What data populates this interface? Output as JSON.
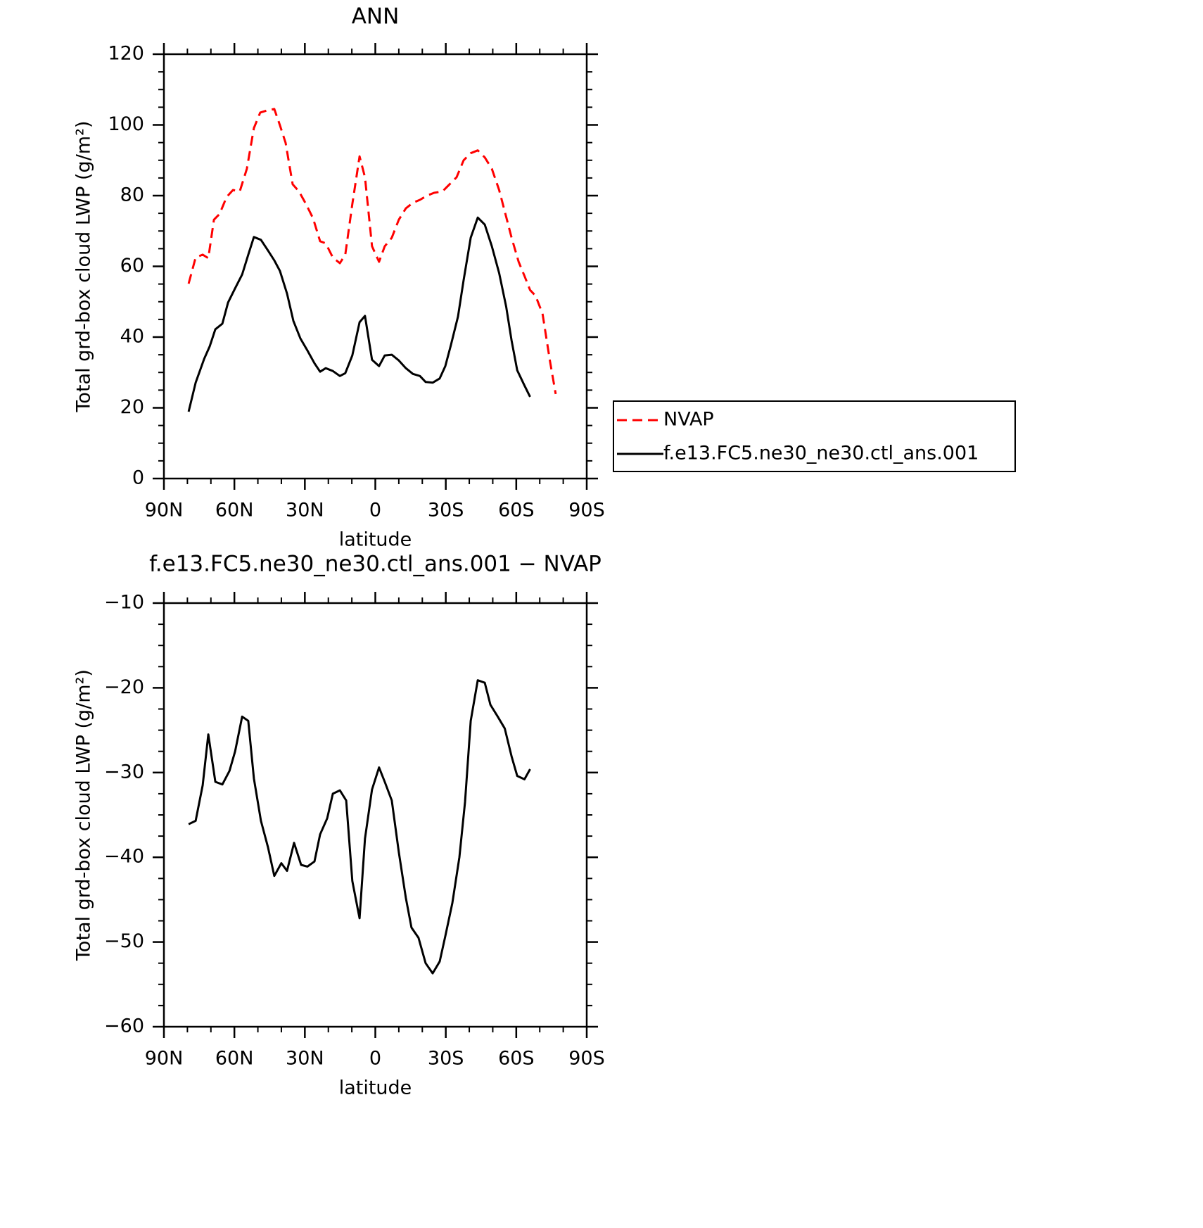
{
  "chart_data": [
    {
      "type": "line",
      "title": "ANN",
      "xlabel": "latitude",
      "ylabel": "Total grd-box cloud LWP (g/m²)",
      "xlim": [
        90,
        -90
      ],
      "xticks": [
        {
          "value": 90,
          "label": "90N"
        },
        {
          "value": 60,
          "label": "60N"
        },
        {
          "value": 30,
          "label": "30N"
        },
        0,
        {
          "value": -30,
          "label": "30S"
        },
        {
          "value": -60,
          "label": "60S"
        },
        {
          "value": -90,
          "label": "90S"
        }
      ],
      "ylim": [
        0,
        120
      ],
      "yticks": [
        0,
        20,
        40,
        60,
        80,
        100,
        120
      ],
      "legend": "right",
      "series": [
        {
          "name": "NVAP",
          "color": "#ff0000",
          "line_style": "dashed",
          "x": [
            79.5,
            76.5,
            73.5,
            71.1,
            68.7,
            66.3,
            63.3,
            60.6,
            57.7,
            54.7,
            51.7,
            49.0,
            46.0,
            43.0,
            40.6,
            38.2,
            35.2,
            32.5,
            29.5,
            26.5,
            23.5,
            21.1,
            18.1,
            15.1,
            12.8,
            9.8,
            6.7,
            4.4,
            1.4,
            -1.6,
            -4.0,
            -7.0,
            -10.0,
            -13.0,
            -16.0,
            -19.0,
            -22.0,
            -25.0,
            -28.6,
            -31.6,
            -34.6,
            -37.6,
            -40.6,
            -43.6,
            -46.6,
            -49.6,
            -52.7,
            -55.7,
            -58.0,
            -61.0,
            -63.5,
            -65.9,
            -68.2,
            -71.2,
            -74.3,
            -76.8
          ],
          "values": [
            55.1,
            62.5,
            63.3,
            62.3,
            73.2,
            74.8,
            79.6,
            81.6,
            81.2,
            87.6,
            99.1,
            103.5,
            104.1,
            104.5,
            99.9,
            94.9,
            83.2,
            81.2,
            77.6,
            73.6,
            67.1,
            66.5,
            62.5,
            60.9,
            63.3,
            77.6,
            91.1,
            85.2,
            65.7,
            61.3,
            65.7,
            68.1,
            73.2,
            76.4,
            78.0,
            78.8,
            80.0,
            80.8,
            81.2,
            83.2,
            85.2,
            90.0,
            92.0,
            92.8,
            90.8,
            87.6,
            81.6,
            74.0,
            68.1,
            61.3,
            57.3,
            53.3,
            51.7,
            46.6,
            33.4,
            23.9
          ]
        },
        {
          "name": "f.e13.FC5.ne30_ne30.ctl_ans.001",
          "color": "#000000",
          "line_style": "solid",
          "x": [
            79.5,
            76.5,
            72.9,
            70.5,
            68.1,
            65.1,
            62.7,
            59.7,
            56.7,
            54.1,
            51.7,
            48.7,
            45.7,
            43.0,
            40.6,
            37.6,
            34.9,
            31.9,
            28.9,
            25.9,
            23.5,
            21.1,
            18.1,
            15.1,
            12.8,
            9.8,
            6.7,
            4.4,
            1.4,
            -1.6,
            -4.0,
            -7.0,
            -10.0,
            -13.0,
            -16.0,
            -19.0,
            -21.4,
            -24.4,
            -27.4,
            -29.8,
            -32.2,
            -35.2,
            -37.6,
            -40.6,
            -43.6,
            -46.6,
            -49.6,
            -52.7,
            -55.7,
            -58.0,
            -60.4,
            -63.5,
            -65.9
          ],
          "values": [
            18.9,
            27.1,
            33.8,
            37.4,
            42.2,
            43.8,
            49.8,
            53.8,
            57.7,
            63.3,
            68.3,
            67.5,
            64.5,
            61.7,
            58.7,
            52.3,
            44.6,
            39.6,
            36.2,
            32.6,
            30.2,
            31.2,
            30.4,
            29.0,
            29.8,
            34.8,
            44.2,
            46.0,
            33.6,
            31.8,
            34.8,
            35.0,
            33.4,
            31.2,
            29.6,
            29.0,
            27.3,
            27.1,
            28.3,
            31.8,
            37.8,
            45.8,
            56.1,
            68.1,
            73.8,
            71.8,
            65.7,
            58.1,
            48.6,
            39.0,
            30.6,
            26.3,
            23.1
          ]
        }
      ]
    },
    {
      "type": "line",
      "title": "f.e13.FC5.ne30_ne30.ctl_ans.001 − NVAP",
      "xlabel": "latitude",
      "ylabel": "Total grd-box cloud LWP (g/m²)",
      "xlim": [
        90,
        -90
      ],
      "xticks": [
        {
          "value": 90,
          "label": "90N"
        },
        {
          "value": 60,
          "label": "60N"
        },
        {
          "value": 30,
          "label": "30N"
        },
        0,
        {
          "value": -30,
          "label": "30S"
        },
        {
          "value": -60,
          "label": "60S"
        },
        {
          "value": -90,
          "label": "90S"
        }
      ],
      "ylim": [
        -60,
        -10
      ],
      "yticks": [
        {
          "value": -60,
          "label": "−60"
        },
        {
          "value": -50,
          "label": "−50"
        },
        {
          "value": -40,
          "label": "−40"
        },
        {
          "value": -30,
          "label": "−30"
        },
        {
          "value": -20,
          "label": "−20"
        },
        {
          "value": -10,
          "label": "−10"
        }
      ],
      "series": [
        {
          "color": "#000000",
          "line_style": "solid",
          "x": [
            79.5,
            76.5,
            73.5,
            71.1,
            68.1,
            65.1,
            62.1,
            59.7,
            56.7,
            54.1,
            51.7,
            48.7,
            45.7,
            43.0,
            40.0,
            37.6,
            34.6,
            31.6,
            28.9,
            25.9,
            23.5,
            20.5,
            18.1,
            15.1,
            12.4,
            9.8,
            6.7,
            4.4,
            1.4,
            -1.6,
            -4.0,
            -7.0,
            -10.0,
            -13.0,
            -15.4,
            -18.4,
            -21.4,
            -24.4,
            -27.4,
            -29.8,
            -32.8,
            -35.8,
            -38.2,
            -40.6,
            -43.6,
            -46.6,
            -49.0,
            -52.1,
            -55.1,
            -58.0,
            -60.4,
            -63.5,
            -65.9
          ],
          "values": [
            -36.1,
            -35.7,
            -31.5,
            -25.5,
            -31.1,
            -31.4,
            -29.8,
            -27.5,
            -23.4,
            -23.9,
            -30.7,
            -35.7,
            -38.8,
            -42.2,
            -40.7,
            -41.6,
            -38.3,
            -40.9,
            -41.1,
            -40.5,
            -37.3,
            -35.4,
            -32.5,
            -32.1,
            -33.3,
            -42.8,
            -47.2,
            -37.8,
            -32.0,
            -29.4,
            -31.1,
            -33.3,
            -39.4,
            -44.8,
            -48.3,
            -49.5,
            -52.5,
            -53.7,
            -52.3,
            -49.3,
            -45.4,
            -40.0,
            -33.5,
            -23.9,
            -19.1,
            -19.4,
            -22.0,
            -23.4,
            -24.8,
            -28.1,
            -30.4,
            -30.8,
            -29.6
          ]
        }
      ]
    }
  ]
}
